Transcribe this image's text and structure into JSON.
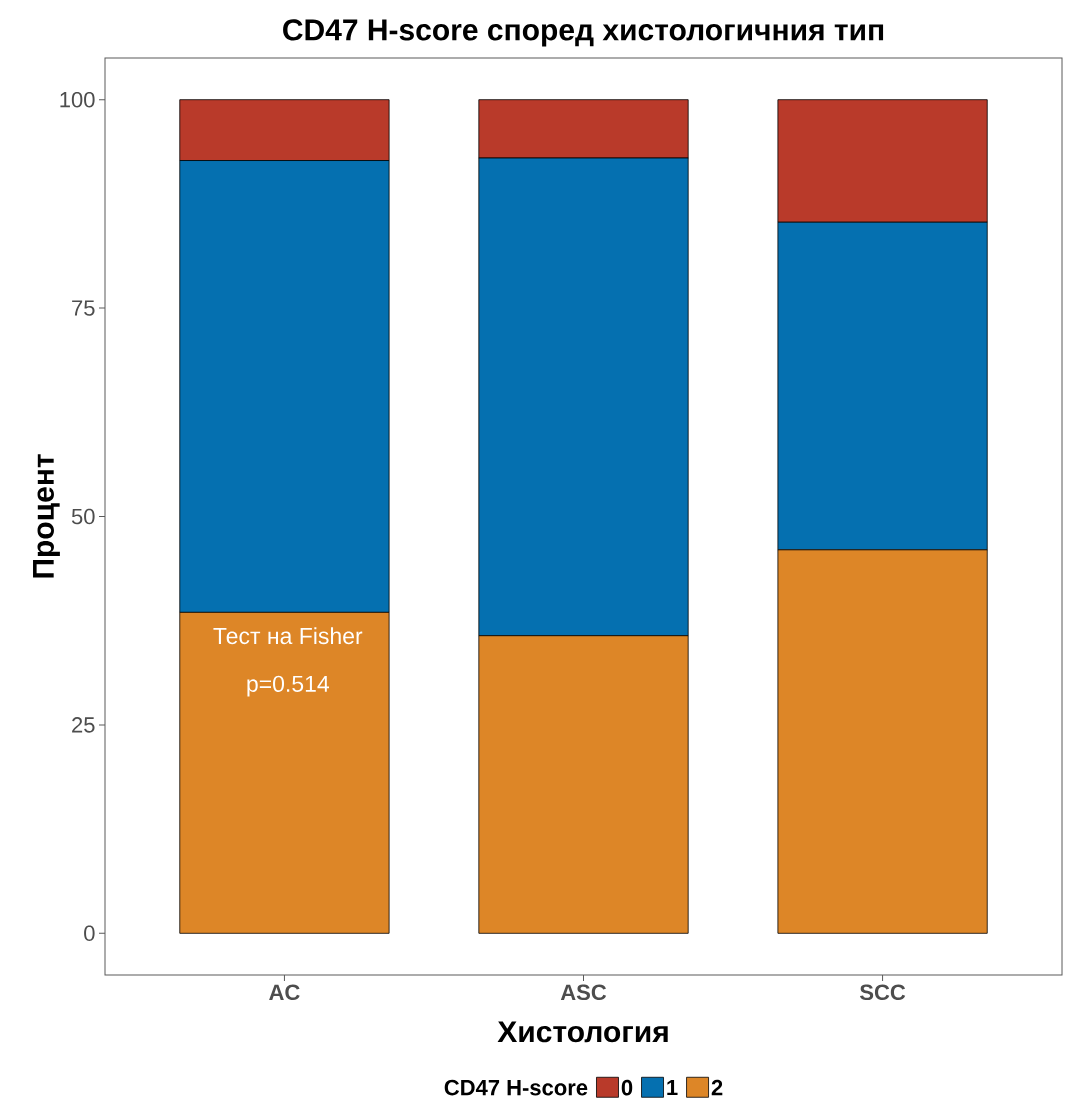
{
  "chart_data": {
    "type": "bar",
    "title": "CD47 H-score според хистологичния тип",
    "xlabel": "Хистология",
    "ylabel": "Процент",
    "legend_title": "CD47 H-score",
    "categories": [
      "AC",
      "ASC",
      "SCC"
    ],
    "stacked": true,
    "series": [
      {
        "name": "2",
        "color": "#dd8627",
        "values": [
          38.5,
          35.7,
          46.0
        ]
      },
      {
        "name": "1",
        "color": "#0570b0",
        "values": [
          54.2,
          57.3,
          39.3
        ]
      },
      {
        "name": "0",
        "color": "#b93a2a",
        "values": [
          7.3,
          7.0,
          14.7
        ]
      }
    ],
    "ylim": [
      -5,
      105
    ],
    "yticks": [
      0,
      25,
      50,
      75,
      100
    ],
    "legend": "bottom",
    "grid": false,
    "annotations": [
      "Тест на Fisher",
      "p=0.514"
    ]
  }
}
